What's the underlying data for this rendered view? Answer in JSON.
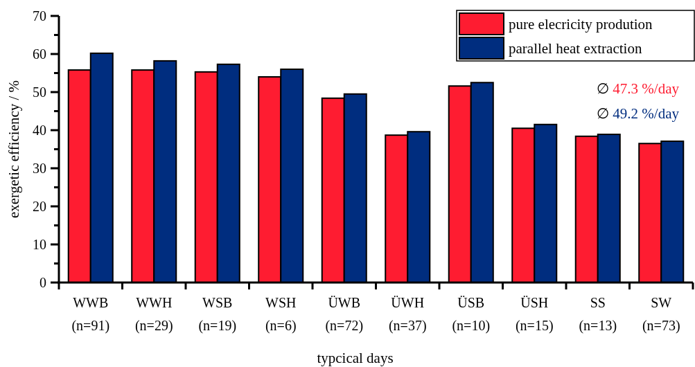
{
  "chart_data": {
    "type": "bar",
    "categories": [
      "WWB\n(n=91)",
      "WWH\n(n=29)",
      "WSB\n(n=19)",
      "WSH\n(n=6)",
      "ÜWB\n(n=72)",
      "ÜWH\n(n=37)",
      "ÜSB\n(n=10)",
      "ÜSH\n(n=15)",
      "SS\n(n=13)",
      "SW\n(n=73)"
    ],
    "series": [
      {
        "name": "pure elecricity prodution",
        "color": "#fe1c31",
        "values": [
          55.8,
          55.8,
          55.3,
          54.0,
          48.4,
          38.7,
          51.6,
          40.5,
          38.4,
          36.5
        ]
      },
      {
        "name": "parallel heat extraction",
        "color": "#002d7f",
        "values": [
          60.2,
          58.2,
          57.3,
          56.0,
          49.5,
          39.6,
          52.5,
          41.5,
          38.9,
          37.1
        ]
      }
    ],
    "xlabel": "typcical days",
    "ylabel": "exergetic efficiency / %",
    "ylim": [
      0,
      70
    ],
    "yticks": [
      0,
      {
        "value": 5,
        "label": null
      },
      10,
      {
        "value": 15,
        "label": null
      },
      20,
      {
        "value": 25,
        "label": null
      },
      30,
      {
        "value": 35,
        "label": null
      },
      40,
      {
        "value": 45,
        "label": null
      },
      50,
      {
        "value": 55,
        "label": null
      },
      60,
      {
        "value": 65,
        "label": null
      },
      70
    ],
    "annotations": [
      "∅ 47.3 %/day",
      "∅ 49.2 %/day"
    ],
    "legend": "top right",
    "grid": false
  }
}
